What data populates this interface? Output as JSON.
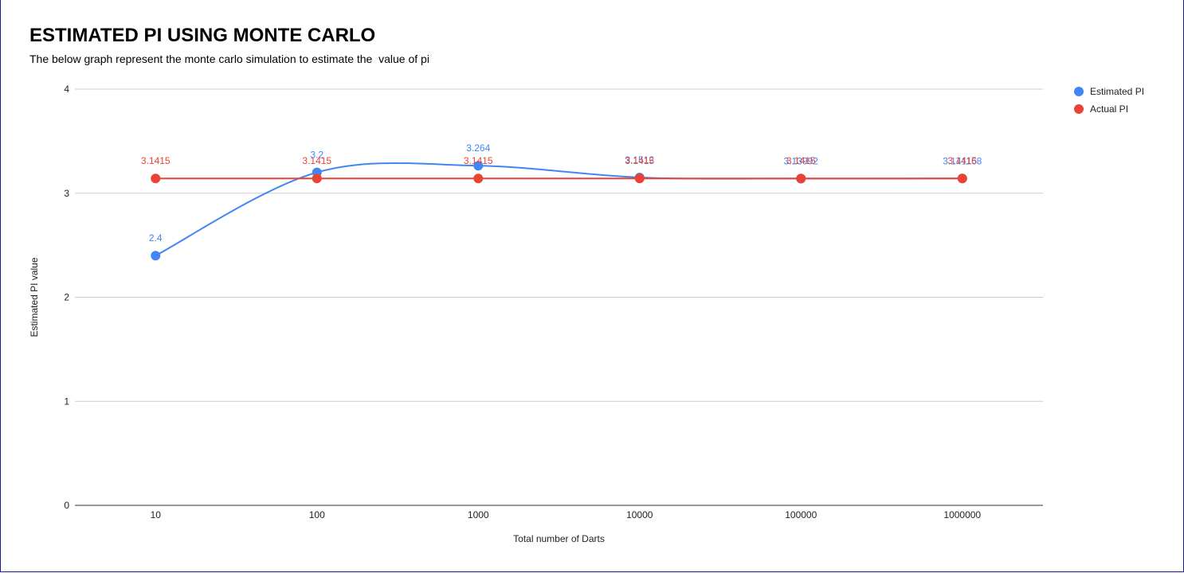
{
  "title": "ESTIMATED PI USING MONTE CARLO",
  "subtitle": "The below graph represent the monte carlo simulation to estimate the  value of pi",
  "chart_data": {
    "type": "line",
    "categories": [
      "10",
      "100",
      "1000",
      "10000",
      "100000",
      "1000000"
    ],
    "series": [
      {
        "name": "Estimated PI",
        "color": "#4285f4",
        "values": [
          2.4,
          3.2,
          3.264,
          3.1512,
          3.13992,
          3.141168
        ],
        "labels": [
          "2.4",
          "3.2",
          "3.264",
          "3.1512",
          "3.13992",
          "3.141168"
        ],
        "smooth": true
      },
      {
        "name": "Actual PI",
        "color": "#ea4335",
        "values": [
          3.1415,
          3.1415,
          3.1415,
          3.1415,
          3.1415,
          3.1415
        ],
        "labels": [
          "3.1415",
          "3.1415",
          "3.1415",
          "3.1415",
          "3.1415",
          "3.1415"
        ],
        "smooth": false
      }
    ],
    "xlabel": "Total number of Darts",
    "ylabel": "Estimated PI value",
    "ylim": [
      0,
      4
    ],
    "yticks": [
      "0",
      "1",
      "2",
      "3",
      "4"
    ],
    "grid": true,
    "legend_position": "right"
  }
}
